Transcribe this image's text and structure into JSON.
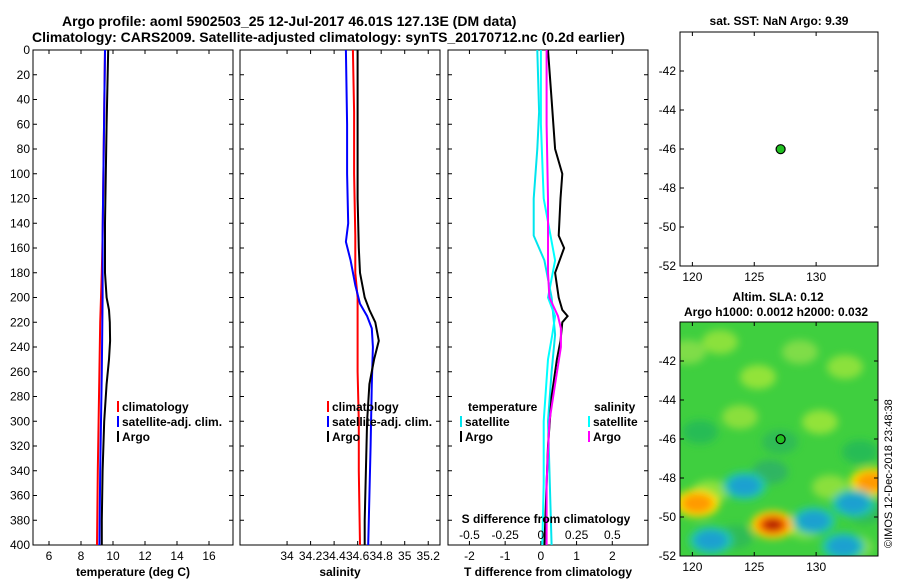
{
  "header": {
    "line1": "Argo profile: aoml 5902503_25 12-Jul-2017 46.01S 127.13E (DM data)",
    "line2": "Climatology: CARS2009. Satellite-adjusted climatology: synTS_20170712.nc (0.2d earlier)"
  },
  "colors": {
    "climatology": "#ff0000",
    "satellite": "#0000ff",
    "argo": "#000000",
    "sat_T_diff": "#00e5ee",
    "sat_S_diff": "#00ffff",
    "argo_S_diff": "#ff00ff",
    "argo_marker": "#22c022"
  },
  "chart_data": [
    {
      "id": "temperature",
      "type": "line",
      "xlabel": "temperature (deg C)",
      "ylabel": "depth",
      "xlim": [
        5,
        17.5
      ],
      "ylim": [
        400,
        0
      ],
      "xticks": [
        "6",
        "8",
        "10",
        "12",
        "14",
        "16"
      ],
      "yticks": [
        "0",
        "20",
        "40",
        "60",
        "80",
        "100",
        "120",
        "140",
        "160",
        "180",
        "200",
        "220",
        "240",
        "260",
        "280",
        "300",
        "320",
        "340",
        "360",
        "380",
        "400"
      ],
      "legend": {
        "labels": [
          "climatology",
          "satellite-adj. clim.",
          "Argo"
        ],
        "location": "middle-right"
      },
      "series": [
        {
          "name": "climatology",
          "color": "#ff0000",
          "depth": [
            0,
            50,
            100,
            150,
            180,
            200,
            220,
            260,
            300,
            340,
            400
          ],
          "values": [
            9.5,
            9.45,
            9.4,
            9.35,
            9.3,
            9.25,
            9.2,
            9.15,
            9.1,
            9.05,
            9.0
          ]
        },
        {
          "name": "satellite-adj. clim.",
          "color": "#0000ff",
          "depth": [
            0,
            50,
            100,
            150,
            200,
            260,
            300,
            340,
            400
          ],
          "values": [
            9.5,
            9.45,
            9.4,
            9.35,
            9.35,
            9.3,
            9.25,
            9.2,
            9.15
          ]
        },
        {
          "name": "Argo",
          "color": "#000000",
          "depth": [
            0,
            30,
            60,
            100,
            140,
            180,
            200,
            210,
            220,
            235,
            250,
            270,
            300,
            340,
            380,
            400
          ],
          "values": [
            9.7,
            9.65,
            9.6,
            9.55,
            9.5,
            9.5,
            9.6,
            9.75,
            9.8,
            9.82,
            9.75,
            9.6,
            9.45,
            9.35,
            9.3,
            9.3
          ]
        }
      ]
    },
    {
      "id": "salinity",
      "type": "line",
      "xlabel": "salinity",
      "ylabel": "depth",
      "xlim": [
        33.6,
        35.3
      ],
      "ylim": [
        400,
        0
      ],
      "xticks": [
        "34",
        "34.2",
        "34.4",
        "34.6",
        "34.8",
        "35",
        "35.2"
      ],
      "legend": {
        "labels": [
          "climatology",
          "satellite-adj. clim.",
          "Argo"
        ],
        "location": "middle-right"
      },
      "series": [
        {
          "name": "climatology",
          "color": "#ff0000",
          "depth": [
            0,
            50,
            100,
            150,
            180,
            200,
            220,
            260,
            300,
            340,
            400
          ],
          "values": [
            34.56,
            34.57,
            34.57,
            34.58,
            34.58,
            34.6,
            34.6,
            34.6,
            34.61,
            34.61,
            34.62
          ]
        },
        {
          "name": "satellite-adj. clim.",
          "color": "#0000ff",
          "depth": [
            0,
            60,
            100,
            140,
            155,
            170,
            190,
            205,
            215,
            225,
            240,
            270,
            320,
            360,
            400
          ],
          "values": [
            34.5,
            34.51,
            34.51,
            34.52,
            34.5,
            34.54,
            34.58,
            34.62,
            34.68,
            34.72,
            34.73,
            34.72,
            34.71,
            34.7,
            34.69
          ]
        },
        {
          "name": "Argo",
          "color": "#000000",
          "depth": [
            0,
            60,
            120,
            160,
            180,
            200,
            210,
            220,
            235,
            250,
            270,
            300,
            340,
            380,
            400
          ],
          "values": [
            34.6,
            34.6,
            34.6,
            34.61,
            34.62,
            34.66,
            34.7,
            34.75,
            34.78,
            34.74,
            34.7,
            34.68,
            34.67,
            34.66,
            34.66
          ]
        }
      ]
    },
    {
      "id": "difference",
      "type": "line",
      "xlabel": "T difference from climatology",
      "ylabel": "depth",
      "xlim": [
        -2.6,
        3.0
      ],
      "ylim": [
        400,
        0
      ],
      "xticks": [
        "-2",
        "-1",
        "0",
        "1",
        "2"
      ],
      "secondary_axis": {
        "label": "S difference from climatology",
        "ticks": [
          "-0.5",
          "-0.25",
          "0",
          "0.25",
          "0.5"
        ],
        "range": [
          -0.65,
          0.75
        ]
      },
      "legend_left": {
        "header": "temperature",
        "labels": [
          "satellite",
          "Argo"
        ],
        "location": "lower-left"
      },
      "legend_right": {
        "header": "salinity",
        "labels": [
          "satellite",
          "Argo"
        ],
        "location": "lower-right"
      },
      "series": [
        {
          "name": "T satellite",
          "color": "#00e5ee",
          "depth": [
            0,
            50,
            80,
            120,
            150,
            170,
            200,
            230,
            260,
            300,
            350,
            400
          ],
          "values": [
            -0.1,
            -0.05,
            -0.1,
            -0.2,
            -0.2,
            0.1,
            0.3,
            0.4,
            0.3,
            0.2,
            0.25,
            0.3
          ]
        },
        {
          "name": "T Argo",
          "color": "#000000",
          "depth": [
            0,
            40,
            80,
            100,
            120,
            150,
            160,
            180,
            200,
            210,
            215,
            220,
            235,
            250,
            280,
            320,
            360,
            400
          ],
          "values": [
            0.2,
            0.3,
            0.4,
            0.6,
            0.55,
            0.5,
            0.65,
            0.4,
            0.5,
            0.6,
            0.75,
            0.6,
            0.55,
            0.45,
            0.3,
            0.2,
            0.15,
            0.1
          ]
        },
        {
          "name": "S satellite",
          "color": "#00ffff",
          "depth": [
            0,
            60,
            120,
            170,
            200,
            215,
            230,
            250,
            300,
            350,
            400
          ],
          "values": [
            0.0,
            0.0,
            0.02,
            0.1,
            0.05,
            0.1,
            0.08,
            0.05,
            0.02,
            0.02,
            0.01
          ]
        },
        {
          "name": "S Argo",
          "color": "#ff00ff",
          "depth": [
            0,
            60,
            120,
            180,
            200,
            215,
            225,
            240,
            270,
            300,
            350,
            400
          ],
          "values": [
            0.04,
            0.04,
            0.05,
            0.05,
            0.06,
            0.12,
            0.14,
            0.14,
            0.1,
            0.06,
            0.04,
            0.04
          ]
        }
      ]
    },
    {
      "id": "sst_map",
      "type": "scatter",
      "title": "sat. SST: NaN Argo: 9.39",
      "xlim": [
        119,
        135
      ],
      "ylim": [
        -52,
        -40
      ],
      "xticks": [
        "120",
        "125",
        "130"
      ],
      "yticks": [
        "-42",
        "-44",
        "-46",
        "-48",
        "-50",
        "-52"
      ],
      "points": [
        {
          "lon": 127.13,
          "lat": -46.01
        }
      ]
    },
    {
      "id": "sla_map",
      "type": "heatmap",
      "title_line1": "Altim. SLA: 0.12",
      "title_line2": "Argo h1000: 0.0012 h2000: 0.032",
      "xlim": [
        119,
        135
      ],
      "ylim": [
        -52,
        -40
      ],
      "xticks": [
        "120",
        "125",
        "130"
      ],
      "yticks": [
        "-42",
        "-44",
        "-46",
        "-48",
        "-50",
        "-52"
      ],
      "points": [
        {
          "lon": 127.13,
          "lat": -46.01
        }
      ],
      "blobs": [
        {
          "lon": 126.5,
          "lat": -50.4,
          "level": "high"
        },
        {
          "lon": 120.4,
          "lat": -49.3,
          "level": "mid-high"
        },
        {
          "lon": 134.5,
          "lat": -48.2,
          "level": "mid-high"
        },
        {
          "lon": 124.2,
          "lat": -48.4,
          "level": "low"
        },
        {
          "lon": 129.8,
          "lat": -50.2,
          "level": "low"
        },
        {
          "lon": 121.5,
          "lat": -51.2,
          "level": "low"
        },
        {
          "lon": 133.0,
          "lat": -49.3,
          "level": "low"
        },
        {
          "lon": 132.2,
          "lat": -51.5,
          "level": "low"
        }
      ]
    }
  ],
  "watermark": "©IMOS 12-Dec-2018 23:48:38"
}
